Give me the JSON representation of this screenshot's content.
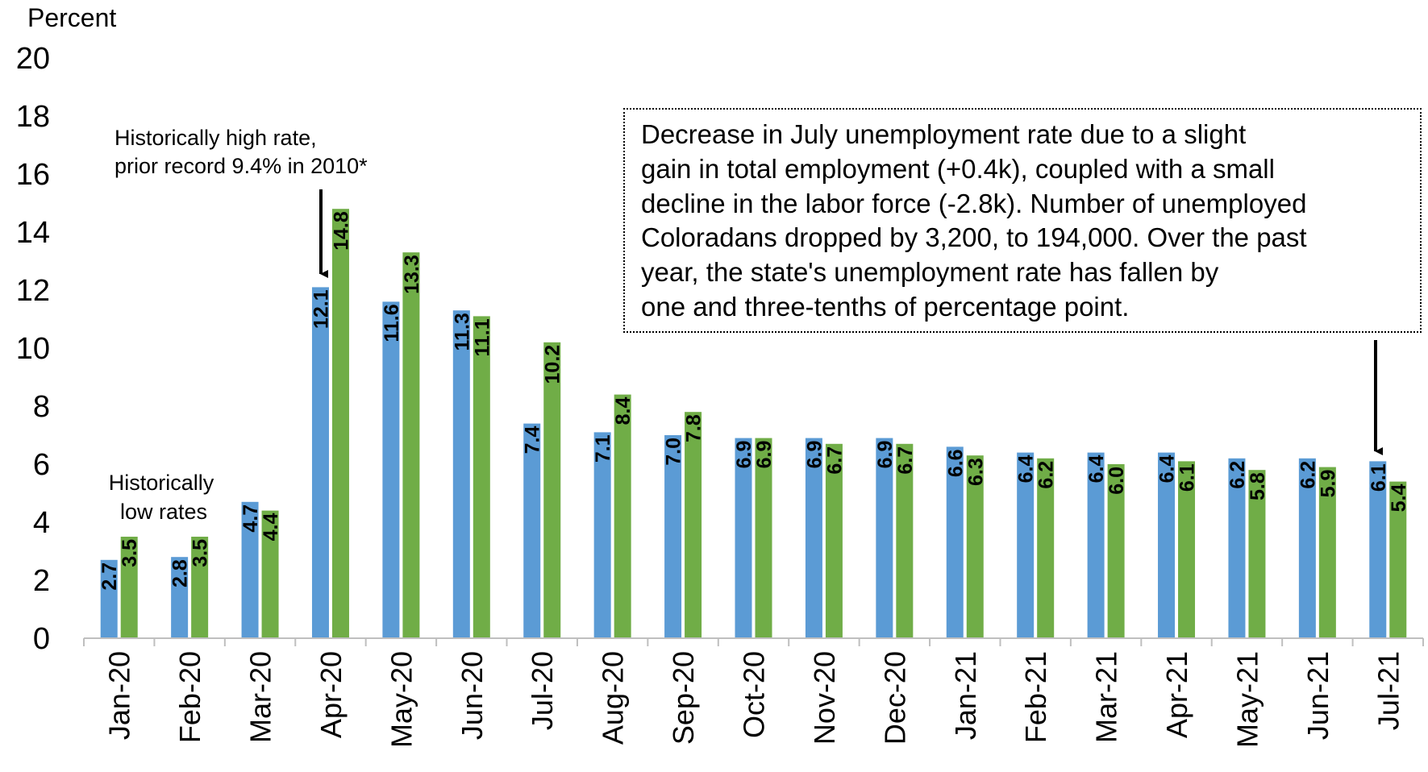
{
  "chart_data": {
    "type": "bar",
    "ylabel": "Percent",
    "ylim": [
      0,
      20
    ],
    "yticks": [
      "0",
      "2",
      "4",
      "6",
      "8",
      "10",
      "12",
      "14",
      "16",
      "18",
      "20"
    ],
    "categories": [
      "Jan-20",
      "Feb-20",
      "Mar-20",
      "Apr-20",
      "May-20",
      "Jun-20",
      "Jul-20",
      "Aug-20",
      "Sep-20",
      "Oct-20",
      "Nov-20",
      "Dec-20",
      "Jan-21",
      "Feb-21",
      "Mar-21",
      "Apr-21",
      "May-21",
      "Jun-21",
      "Jul-21"
    ],
    "series": [
      {
        "color": "#5B9BD5",
        "values": [
          2.7,
          2.8,
          4.7,
          12.1,
          11.6,
          11.3,
          7.4,
          7.1,
          7.0,
          6.9,
          6.9,
          6.9,
          6.6,
          6.4,
          6.4,
          6.4,
          6.2,
          6.2,
          6.1
        ]
      },
      {
        "color": "#70AD47",
        "values": [
          3.5,
          3.5,
          4.4,
          14.8,
          13.3,
          11.1,
          10.2,
          8.4,
          7.8,
          6.9,
          6.7,
          6.7,
          6.3,
          6.2,
          6.0,
          6.1,
          5.8,
          5.9,
          5.4
        ]
      }
    ],
    "data_labels": [
      [
        "2.7",
        "2.8",
        "4.7",
        "12.1",
        "11.6",
        "11.3",
        "7.4",
        "7.1",
        "7.0",
        "6.9",
        "6.9",
        "6.9",
        "6.6",
        "6.4",
        "6.4",
        "6.4",
        "6.2",
        "6.2",
        "6.1"
      ],
      [
        "3.5",
        "3.5",
        "4.4",
        "14.8",
        "13.3",
        "11.1",
        "10.2",
        "8.4",
        "7.8",
        "6.9",
        "6.7",
        "6.7",
        "6.3",
        "6.2",
        "6.0",
        "6.1",
        "5.8",
        "5.9",
        "5.4"
      ]
    ],
    "grid": false,
    "annotations": {
      "low_rates": [
        "Historically",
        "low rates"
      ],
      "high_rate": [
        "Historically high rate,",
        "prior record 9.4% in 2010*"
      ],
      "callout": [
        "Decrease in July unemployment rate due to a slight",
        "gain in total employment (+0.4k), coupled with a small",
        "decline in the labor force (-2.8k). Number of unemployed",
        "Coloradans dropped by 3,200, to 194,000. Over the past",
        "year, the state's unemployment rate has fallen by",
        "one and three-tenths of percentage point."
      ]
    }
  }
}
